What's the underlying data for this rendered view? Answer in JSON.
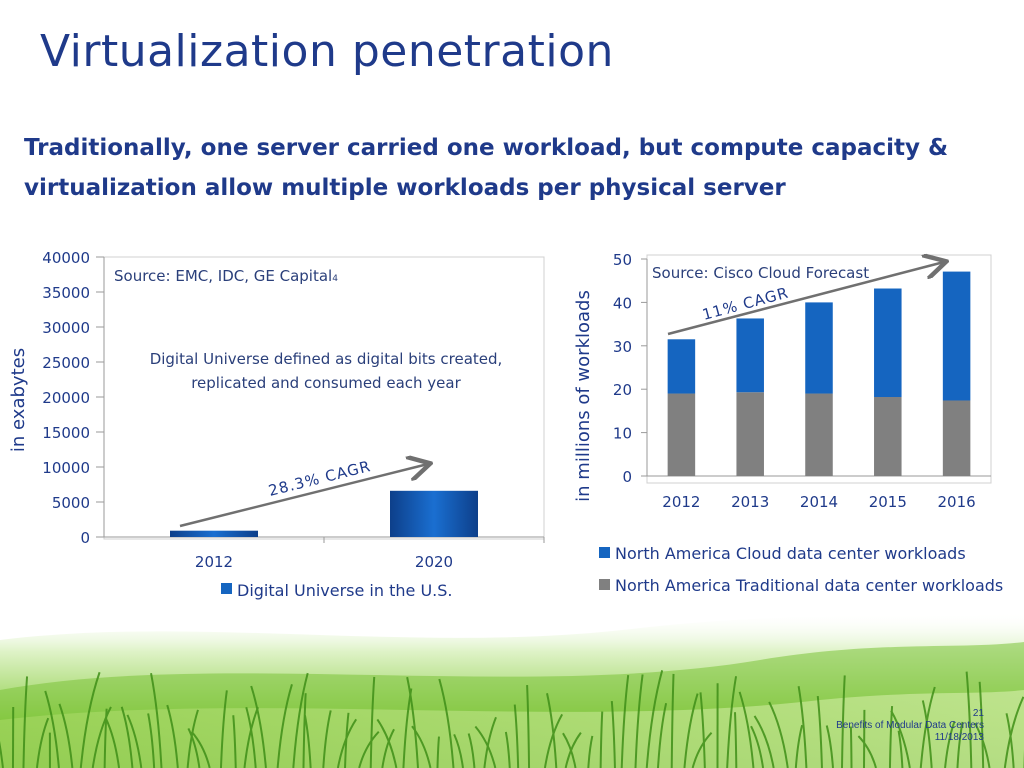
{
  "slide": {
    "title": "Virtualization penetration",
    "subtitle": "Traditionally, one server carried one workload, but compute capacity & virtualization allow multiple workloads per physical server"
  },
  "footer": {
    "page_number": "21",
    "presentation_title": "Benefits of Modular Data Centers",
    "date": "11/18/2013"
  },
  "chart_data": [
    {
      "type": "bar",
      "categories": [
        "2012",
        "2020"
      ],
      "series": [
        {
          "name": "Digital Universe in the U.S.",
          "values": [
            900,
            6600
          ],
          "color": "#1565c0"
        }
      ],
      "ylabel": "in exabytes",
      "ylim": [
        0,
        40000
      ],
      "yticks": [
        0,
        5000,
        10000,
        15000,
        20000,
        25000,
        30000,
        35000,
        40000
      ],
      "annotations": {
        "source": "Source: EMC, IDC, GE Capital",
        "source_superscript": "4",
        "note_line1": "Digital Universe defined as digital bits created,",
        "note_line2": "replicated and consumed each year",
        "cagr": "28.3% CAGR"
      },
      "legend": "bottom"
    },
    {
      "type": "bar",
      "stacked": true,
      "categories": [
        "2012",
        "2013",
        "2014",
        "2015",
        "2016"
      ],
      "series": [
        {
          "name": "North America Traditional data center workloads",
          "values": [
            19,
            19.3,
            19,
            18.2,
            17.4
          ],
          "color": "#808080"
        },
        {
          "name": "North America Cloud data center workloads",
          "values": [
            12.5,
            17,
            21,
            25,
            29.7
          ],
          "color": "#1565c0"
        }
      ],
      "ylabel": "in millions of workloads",
      "ylim": [
        0,
        50
      ],
      "yticks": [
        0,
        10,
        20,
        30,
        40,
        50
      ],
      "annotations": {
        "source": "Source: Cisco Cloud Forecast",
        "cagr": "11% CAGR"
      },
      "legend": "bottom"
    }
  ]
}
